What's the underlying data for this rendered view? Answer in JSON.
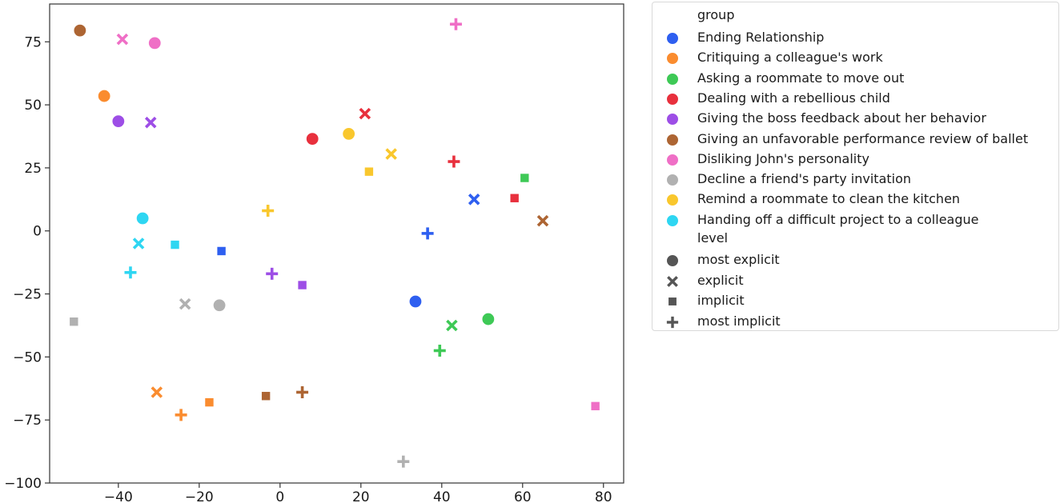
{
  "chart_data": {
    "type": "scatter",
    "title": "",
    "xlabel": "",
    "ylabel": "",
    "xlim": [
      -57,
      85
    ],
    "ylim": [
      -100,
      90
    ],
    "xticks": [
      -40,
      -20,
      0,
      20,
      40,
      60,
      80
    ],
    "yticks": [
      -100,
      -75,
      -50,
      -25,
      0,
      25,
      50,
      75
    ],
    "legend_position": "outside-right",
    "group_title": "group",
    "level_title": "level",
    "groups": [
      {
        "name": "Ending Relationship",
        "color": "#2e5ff0"
      },
      {
        "name": "Critiquing a colleague's work",
        "color": "#fa8c2f"
      },
      {
        "name": "Asking a roommate to move out",
        "color": "#3ec956"
      },
      {
        "name": "Dealing with a rebellious child",
        "color": "#e8303d"
      },
      {
        "name": "Giving the boss feedback about her behavior",
        "color": "#9d4ee6"
      },
      {
        "name": "Giving an unfavorable performance review of ballet",
        "color": "#ad6533"
      },
      {
        "name": "Disliking John's personality",
        "color": "#ef6fc6"
      },
      {
        "name": "Decline a friend's party invitation",
        "color": "#b1b1b1"
      },
      {
        "name": "Remind a roommate to clean the kitchen",
        "color": "#f9c72d"
      },
      {
        "name": "Handing off a difficult project to a colleague",
        "color": "#2ed6f2"
      }
    ],
    "levels": [
      {
        "name": "most explicit",
        "marker": "circle"
      },
      {
        "name": "explicit",
        "marker": "x"
      },
      {
        "name": "implicit",
        "marker": "square"
      },
      {
        "name": "most implicit",
        "marker": "plus"
      }
    ],
    "level_marker_color": "#555555",
    "points": [
      {
        "group": 0,
        "level": 0,
        "x": 33.5,
        "y": -28
      },
      {
        "group": 0,
        "level": 1,
        "x": 48,
        "y": 12.5
      },
      {
        "group": 0,
        "level": 2,
        "x": -14.5,
        "y": -8
      },
      {
        "group": 0,
        "level": 3,
        "x": 36.5,
        "y": -1
      },
      {
        "group": 1,
        "level": 0,
        "x": -43.5,
        "y": 53.5
      },
      {
        "group": 1,
        "level": 1,
        "x": -30.5,
        "y": -64
      },
      {
        "group": 1,
        "level": 2,
        "x": -17.5,
        "y": -68
      },
      {
        "group": 1,
        "level": 3,
        "x": -24.5,
        "y": -73
      },
      {
        "group": 2,
        "level": 0,
        "x": 51.5,
        "y": -35
      },
      {
        "group": 2,
        "level": 1,
        "x": 42.5,
        "y": -37.5
      },
      {
        "group": 2,
        "level": 2,
        "x": 60.5,
        "y": 21
      },
      {
        "group": 2,
        "level": 3,
        "x": 39.5,
        "y": -47.5
      },
      {
        "group": 3,
        "level": 0,
        "x": 8,
        "y": 36.5
      },
      {
        "group": 3,
        "level": 1,
        "x": 21,
        "y": 46.5
      },
      {
        "group": 3,
        "level": 2,
        "x": 58,
        "y": 13
      },
      {
        "group": 3,
        "level": 3,
        "x": 43,
        "y": 27.5
      },
      {
        "group": 4,
        "level": 0,
        "x": -40,
        "y": 43.5
      },
      {
        "group": 4,
        "level": 1,
        "x": -32,
        "y": 43
      },
      {
        "group": 4,
        "level": 2,
        "x": 5.5,
        "y": -21.5
      },
      {
        "group": 4,
        "level": 3,
        "x": -2,
        "y": -17
      },
      {
        "group": 5,
        "level": 0,
        "x": -49.5,
        "y": 79.5
      },
      {
        "group": 5,
        "level": 1,
        "x": 65,
        "y": 4
      },
      {
        "group": 5,
        "level": 2,
        "x": -3.5,
        "y": -65.5
      },
      {
        "group": 5,
        "level": 3,
        "x": 5.5,
        "y": -64
      },
      {
        "group": 6,
        "level": 0,
        "x": -31,
        "y": 74.5
      },
      {
        "group": 6,
        "level": 1,
        "x": -39,
        "y": 76
      },
      {
        "group": 6,
        "level": 2,
        "x": 78,
        "y": -69.5
      },
      {
        "group": 6,
        "level": 3,
        "x": 43.5,
        "y": 82
      },
      {
        "group": 7,
        "level": 0,
        "x": -15,
        "y": -29.5
      },
      {
        "group": 7,
        "level": 1,
        "x": -23.5,
        "y": -29
      },
      {
        "group": 7,
        "level": 2,
        "x": -51,
        "y": -36
      },
      {
        "group": 7,
        "level": 3,
        "x": 30.5,
        "y": -91.5
      },
      {
        "group": 8,
        "level": 0,
        "x": 17,
        "y": 38.5
      },
      {
        "group": 8,
        "level": 1,
        "x": 27.5,
        "y": 30.5
      },
      {
        "group": 8,
        "level": 2,
        "x": 22,
        "y": 23.5
      },
      {
        "group": 8,
        "level": 3,
        "x": -3,
        "y": 8
      },
      {
        "group": 9,
        "level": 0,
        "x": -34,
        "y": 5
      },
      {
        "group": 9,
        "level": 1,
        "x": -35,
        "y": -5
      },
      {
        "group": 9,
        "level": 2,
        "x": -26,
        "y": -5.5
      },
      {
        "group": 9,
        "level": 3,
        "x": -37,
        "y": -16.5
      }
    ]
  }
}
